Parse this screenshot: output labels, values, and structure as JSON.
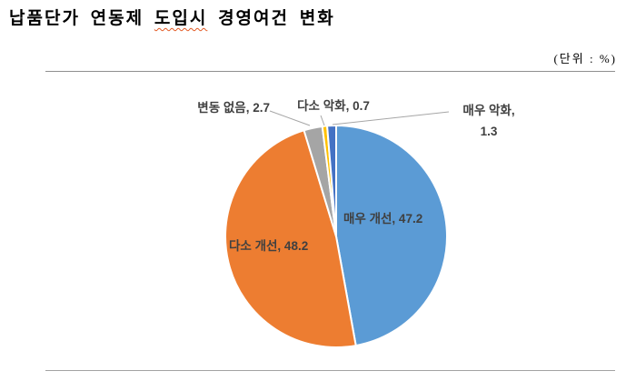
{
  "title": {
    "full": "납품단가 연동제 도입시 경영여건 변화",
    "part1": "납품단가 연동제 ",
    "part2": "도입시",
    "part3": " 경영여건 변화"
  },
  "unit_label": "(단위 : %)",
  "chart_data": {
    "type": "pie",
    "title": "납품단가 연동제 도입시 경영여건 변화",
    "unit": "%",
    "start_angle_deg": 0,
    "direction": "clockwise",
    "legend": "none",
    "label_color": "#404040",
    "leader_line_color": "#A6A6A6",
    "slice_border_color": "#FFFFFF",
    "slices": [
      {
        "id": "very-improved",
        "label": "매우 개선",
        "value": 47.2,
        "color": "#5B9BD5",
        "label_display": "매우 개선, 47.2",
        "label_position": "inside"
      },
      {
        "id": "somewhat-improved",
        "label": "다소 개선",
        "value": 48.2,
        "color": "#ED7D31",
        "label_display": "다소 개선, 48.2",
        "label_position": "inside"
      },
      {
        "id": "no-change",
        "label": "변동 없음",
        "value": 2.7,
        "color": "#A5A5A5",
        "label_display": "변동 없음, 2.7",
        "label_position": "outside"
      },
      {
        "id": "somewhat-worse",
        "label": "다소 악화",
        "value": 0.7,
        "color": "#FFC000",
        "label_display": "다소 악화, 0.7",
        "label_position": "outside"
      },
      {
        "id": "much-worse",
        "label": "매우 악화",
        "value": 1.3,
        "color": "#4472C4",
        "label_display": "매우 악화, 1.3",
        "label_position": "outside",
        "label_lines": [
          "매우 악화,",
          "1.3"
        ]
      }
    ]
  }
}
